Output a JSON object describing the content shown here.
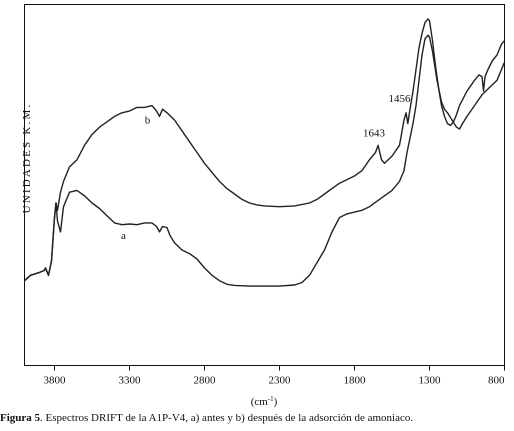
{
  "chart_data": {
    "type": "line",
    "ylabel": "UNIDADES K.M.",
    "xlabel": "(cm",
    "xlabel_sup": "-1",
    "xlabel_close": ")",
    "x_ticks": [
      3800,
      3300,
      2800,
      2300,
      1800,
      1300,
      800
    ],
    "xlim": [
      4000,
      800
    ],
    "ylim": [
      0,
      100
    ],
    "x_reversed": true,
    "grid": false,
    "series": [
      {
        "name": "a",
        "points": [
          [
            4000,
            23.5
          ],
          [
            3960,
            25
          ],
          [
            3900,
            25.8
          ],
          [
            3870,
            26.3
          ],
          [
            3860,
            27
          ],
          [
            3840,
            25
          ],
          [
            3820,
            29
          ],
          [
            3800,
            41
          ],
          [
            3790,
            45
          ],
          [
            3780,
            40
          ],
          [
            3760,
            37
          ],
          [
            3740,
            44
          ],
          [
            3700,
            48
          ],
          [
            3650,
            48.5
          ],
          [
            3600,
            47
          ],
          [
            3550,
            45
          ],
          [
            3500,
            43.5
          ],
          [
            3450,
            41.5
          ],
          [
            3400,
            39.5
          ],
          [
            3350,
            39
          ],
          [
            3300,
            39.2
          ],
          [
            3250,
            39
          ],
          [
            3200,
            39.5
          ],
          [
            3150,
            39.5
          ],
          [
            3120,
            38.5
          ],
          [
            3100,
            37
          ],
          [
            3080,
            38.5
          ],
          [
            3050,
            38.2
          ],
          [
            3030,
            36
          ],
          [
            3000,
            34
          ],
          [
            2950,
            32
          ],
          [
            2900,
            31
          ],
          [
            2850,
            29.5
          ],
          [
            2800,
            27
          ],
          [
            2750,
            25
          ],
          [
            2700,
            23.5
          ],
          [
            2650,
            22.5
          ],
          [
            2600,
            22.2
          ],
          [
            2500,
            22
          ],
          [
            2400,
            22
          ],
          [
            2300,
            22
          ],
          [
            2200,
            22.3
          ],
          [
            2150,
            23
          ],
          [
            2100,
            25
          ],
          [
            2050,
            28.5
          ],
          [
            2000,
            32
          ],
          [
            1950,
            37
          ],
          [
            1900,
            41
          ],
          [
            1850,
            42
          ],
          [
            1800,
            42.5
          ],
          [
            1750,
            43
          ],
          [
            1700,
            44
          ],
          [
            1650,
            45.5
          ],
          [
            1600,
            47
          ],
          [
            1550,
            48.5
          ],
          [
            1500,
            51
          ],
          [
            1470,
            54
          ],
          [
            1450,
            59
          ],
          [
            1430,
            63
          ],
          [
            1410,
            67
          ],
          [
            1390,
            72
          ],
          [
            1370,
            79
          ],
          [
            1350,
            86
          ],
          [
            1330,
            90.5
          ],
          [
            1310,
            91.5
          ],
          [
            1300,
            91
          ],
          [
            1280,
            87
          ],
          [
            1250,
            79
          ],
          [
            1220,
            73
          ],
          [
            1200,
            71
          ],
          [
            1180,
            70
          ],
          [
            1150,
            68
          ],
          [
            1120,
            66
          ],
          [
            1100,
            65.5
          ],
          [
            1080,
            67
          ],
          [
            1050,
            69
          ],
          [
            1000,
            72
          ],
          [
            950,
            75
          ],
          [
            900,
            77
          ],
          [
            850,
            79
          ],
          [
            820,
            82
          ],
          [
            800,
            84
          ]
        ]
      },
      {
        "name": "b",
        "points": [
          [
            4000,
            23.5
          ],
          [
            3960,
            25
          ],
          [
            3900,
            25.8
          ],
          [
            3870,
            26.3
          ],
          [
            3860,
            27
          ],
          [
            3840,
            25
          ],
          [
            3820,
            29
          ],
          [
            3800,
            41
          ],
          [
            3790,
            45
          ],
          [
            3780,
            43
          ],
          [
            3760,
            48
          ],
          [
            3740,
            51
          ],
          [
            3720,
            53
          ],
          [
            3700,
            55
          ],
          [
            3650,
            57
          ],
          [
            3600,
            61
          ],
          [
            3550,
            64
          ],
          [
            3500,
            66
          ],
          [
            3450,
            67.5
          ],
          [
            3400,
            69
          ],
          [
            3350,
            70
          ],
          [
            3300,
            70.5
          ],
          [
            3250,
            71.5
          ],
          [
            3200,
            71.5
          ],
          [
            3150,
            72
          ],
          [
            3120,
            70.5
          ],
          [
            3100,
            69
          ],
          [
            3080,
            71
          ],
          [
            3050,
            70
          ],
          [
            3000,
            68
          ],
          [
            2950,
            65
          ],
          [
            2900,
            62
          ],
          [
            2850,
            59
          ],
          [
            2800,
            56
          ],
          [
            2750,
            53.5
          ],
          [
            2700,
            51
          ],
          [
            2650,
            49
          ],
          [
            2600,
            47.5
          ],
          [
            2550,
            46
          ],
          [
            2500,
            45
          ],
          [
            2450,
            44.5
          ],
          [
            2400,
            44.2
          ],
          [
            2300,
            44
          ],
          [
            2200,
            44.2
          ],
          [
            2100,
            45
          ],
          [
            2050,
            46
          ],
          [
            2000,
            47.5
          ],
          [
            1950,
            49
          ],
          [
            1900,
            50.5
          ],
          [
            1850,
            51.5
          ],
          [
            1800,
            52.5
          ],
          [
            1750,
            54
          ],
          [
            1700,
            57
          ],
          [
            1660,
            59
          ],
          [
            1643,
            61
          ],
          [
            1620,
            57
          ],
          [
            1600,
            56
          ],
          [
            1550,
            58
          ],
          [
            1500,
            61
          ],
          [
            1470,
            68
          ],
          [
            1456,
            70
          ],
          [
            1445,
            67
          ],
          [
            1430,
            71
          ],
          [
            1410,
            76
          ],
          [
            1390,
            82
          ],
          [
            1370,
            88
          ],
          [
            1350,
            92
          ],
          [
            1330,
            95
          ],
          [
            1310,
            96
          ],
          [
            1300,
            95.5
          ],
          [
            1280,
            90
          ],
          [
            1260,
            83
          ],
          [
            1240,
            77
          ],
          [
            1220,
            72
          ],
          [
            1200,
            69
          ],
          [
            1180,
            67
          ],
          [
            1160,
            66.5
          ],
          [
            1140,
            67.5
          ],
          [
            1120,
            69.5
          ],
          [
            1100,
            72
          ],
          [
            1050,
            76
          ],
          [
            1000,
            79
          ],
          [
            970,
            80.5
          ],
          [
            950,
            80
          ],
          [
            940,
            76
          ],
          [
            930,
            80
          ],
          [
            910,
            82
          ],
          [
            880,
            84.5
          ],
          [
            850,
            86
          ],
          [
            820,
            89
          ],
          [
            800,
            90
          ]
        ]
      }
    ],
    "annotations": [
      {
        "text": "a",
        "x": 3340,
        "y": 35
      },
      {
        "text": "b",
        "x": 3180,
        "y": 67
      },
      {
        "text": "1643",
        "x": 1670,
        "y": 63.5
      },
      {
        "text": "1456",
        "x": 1500,
        "y": 73
      }
    ]
  },
  "caption": {
    "label": "Figura 5",
    "text": ". Espectros DRIFT de la A1P-V4, a) antes y b) después de la adsorción de amoniaco."
  }
}
